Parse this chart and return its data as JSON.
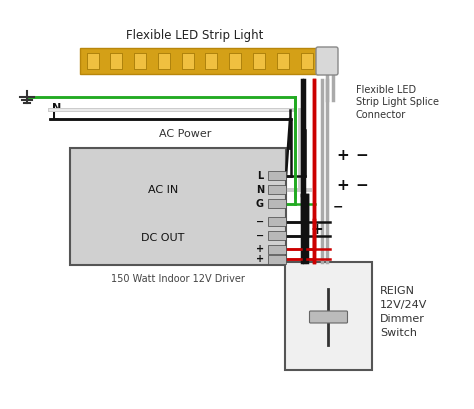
{
  "bg_color": "#ffffff",
  "strip_label": "Flexible LED Strip Light",
  "connector_label": "Flexible LED\nStrip Light Splice\nConnector",
  "driver_label": "150 Watt Indoor 12V Driver",
  "dimmer_label": "REIGN\n12V/24V\nDimmer\nSwitch",
  "ac_power_label": "AC Power",
  "green_color": "#22aa22",
  "red_color": "#cc0000",
  "black_color": "#111111",
  "white_color": "#cccccc",
  "gray_color": "#aaaaaa",
  "strip_yellow": "#d4a017",
  "strip_border": "#b8860b",
  "led_yellow": "#f0c040",
  "driver_box_color": "#d0d0d0",
  "dimmer_box_color": "#f0f0f0",
  "font_size": 7,
  "font_size_label": 8,
  "font_size_title": 8.5
}
